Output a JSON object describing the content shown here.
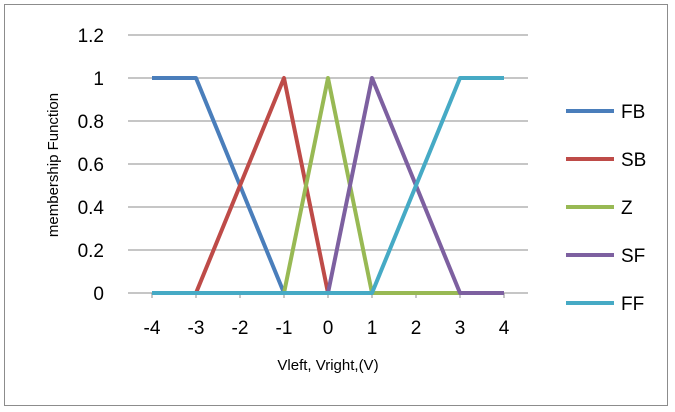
{
  "chart_data": {
    "type": "line",
    "title": "",
    "xlabel": "Vleft, Vright,(V)",
    "ylabel": "membership Function",
    "xlim": [
      -4,
      4
    ],
    "ylim": [
      0,
      1.2
    ],
    "x_ticks": [
      "-4",
      "-3",
      "-2",
      "-1",
      "0",
      "1",
      "2",
      "3",
      "4"
    ],
    "y_ticks": [
      "0",
      "0.2",
      "0.4",
      "0.6",
      "0.8",
      "1",
      "1.2"
    ],
    "grid": "horizontal",
    "legend_position": "right",
    "series": [
      {
        "name": "FB",
        "color": "#4a7ebb",
        "x": [
          -4,
          -3,
          -1,
          0,
          1,
          2,
          3,
          4
        ],
        "y": [
          1,
          1,
          0,
          0,
          0,
          0,
          0,
          0
        ]
      },
      {
        "name": "SB",
        "color": "#be4b48",
        "x": [
          -4,
          -3,
          -1,
          0,
          1,
          2,
          3,
          4
        ],
        "y": [
          0,
          0,
          1,
          0,
          0,
          0,
          0,
          0
        ]
      },
      {
        "name": "Z",
        "color": "#98b954",
        "x": [
          -4,
          -3,
          -1,
          0,
          1,
          2,
          3,
          4
        ],
        "y": [
          0,
          0,
          0,
          1,
          0,
          0,
          0,
          0
        ]
      },
      {
        "name": "SF",
        "color": "#7d60a0",
        "x": [
          -4,
          -3,
          -1,
          0,
          1,
          2,
          3,
          4
        ],
        "y": [
          0,
          0,
          0,
          0,
          1,
          0.5,
          0,
          0
        ]
      },
      {
        "name": "FF",
        "color": "#46aac5",
        "x": [
          -4,
          -3,
          -1,
          0,
          1,
          2,
          3,
          4
        ],
        "y": [
          0,
          0,
          0,
          0,
          0,
          0.5,
          1,
          1
        ]
      }
    ]
  }
}
